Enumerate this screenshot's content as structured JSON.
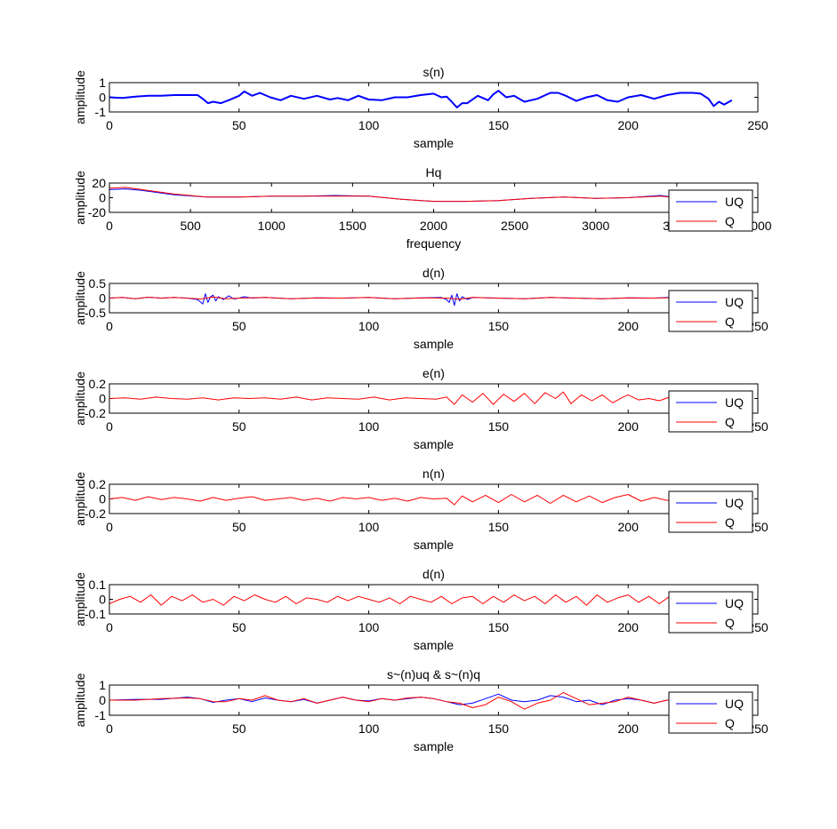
{
  "chart_data": [
    {
      "type": "line",
      "title": "s(n)",
      "xlabel": "sample",
      "ylabel": "amplitude",
      "xlim": [
        0,
        250
      ],
      "ylim": [
        -1,
        1
      ],
      "xticks": [
        "0",
        "50",
        "100",
        "150",
        "200",
        "250"
      ],
      "yticks": [
        "-1",
        "0",
        "1"
      ],
      "legend": null,
      "series": [
        {
          "color": "#0000ff",
          "x": [
            0,
            5,
            10,
            15,
            20,
            25,
            30,
            34,
            36,
            38,
            40,
            43,
            46,
            50,
            52,
            55,
            58,
            62,
            66,
            70,
            75,
            80,
            85,
            88,
            92,
            96,
            100,
            105,
            110,
            115,
            120,
            125,
            128,
            130,
            132,
            134,
            136,
            138,
            142,
            146,
            148,
            150,
            153,
            156,
            160,
            165,
            170,
            173,
            176,
            180,
            184,
            188,
            192,
            196,
            200,
            205,
            210,
            215,
            220,
            225,
            228,
            231,
            233,
            235,
            237,
            240
          ],
          "y": [
            0.0,
            -0.05,
            0.05,
            0.1,
            0.1,
            0.15,
            0.15,
            0.15,
            -0.1,
            -0.4,
            -0.3,
            -0.4,
            -0.2,
            0.1,
            0.4,
            0.1,
            0.3,
            0.0,
            -0.2,
            0.1,
            -0.1,
            0.1,
            -0.15,
            -0.05,
            -0.2,
            0.1,
            -0.15,
            -0.2,
            0.0,
            0.0,
            0.15,
            0.25,
            0.0,
            0.05,
            -0.3,
            -0.7,
            -0.4,
            -0.4,
            0.1,
            -0.2,
            0.2,
            0.45,
            0.0,
            0.1,
            -0.3,
            -0.1,
            0.3,
            0.3,
            0.1,
            -0.25,
            0.0,
            0.15,
            -0.2,
            -0.3,
            0.0,
            0.15,
            -0.1,
            0.15,
            0.3,
            0.3,
            0.25,
            -0.1,
            -0.6,
            -0.3,
            -0.5,
            -0.2
          ]
        }
      ]
    },
    {
      "type": "line",
      "title": "Hq",
      "xlabel": "frequency",
      "ylabel": "amplitude",
      "xlim": [
        0,
        4000
      ],
      "ylim": [
        -20,
        20
      ],
      "xticks": [
        "0",
        "500",
        "1000",
        "1500",
        "2000",
        "2500",
        "3000",
        "3500",
        "4000"
      ],
      "yticks": [
        "-20",
        "0",
        "20"
      ],
      "legend": [
        "UQ",
        "Q"
      ],
      "series": [
        {
          "name": "UQ",
          "color": "#0000ff",
          "x": [
            0,
            100,
            200,
            400,
            600,
            800,
            1000,
            1200,
            1400,
            1600,
            1800,
            2000,
            2200,
            2400,
            2600,
            2800,
            3000,
            3200,
            3400,
            3500
          ],
          "y": [
            11,
            12,
            10,
            4,
            1,
            1,
            2,
            2,
            3,
            2,
            -2,
            -5,
            -5,
            -4,
            -1,
            1,
            -1,
            0,
            3,
            0
          ]
        },
        {
          "name": "Q",
          "color": "#ff0000",
          "x": [
            0,
            100,
            200,
            400,
            600,
            800,
            1000,
            1200,
            1400,
            1600,
            1800,
            2000,
            2200,
            2400,
            2600,
            2800,
            3000,
            3200,
            3400,
            3500
          ],
          "y": [
            13,
            14,
            11,
            5,
            1,
            1,
            2,
            2,
            2,
            2,
            -2,
            -5,
            -5,
            -4,
            -1,
            1,
            -1,
            0,
            2,
            0
          ]
        }
      ]
    },
    {
      "type": "line",
      "title": "d(n)",
      "xlabel": "sample",
      "ylabel": "amplitude",
      "xlim": [
        0,
        250
      ],
      "ylim": [
        -0.5,
        0.5
      ],
      "xticks": [
        "0",
        "50",
        "100",
        "150",
        "200",
        "250"
      ],
      "yticks": [
        "-0.5",
        "0",
        "0.5"
      ],
      "legend": [
        "UQ",
        "Q"
      ],
      "series": [
        {
          "name": "UQ",
          "color": "#0000ff",
          "x": [
            0,
            5,
            10,
            15,
            20,
            25,
            30,
            34,
            36,
            37,
            38,
            39,
            40,
            41,
            42,
            44,
            46,
            48,
            50,
            52,
            55,
            60,
            70,
            80,
            90,
            100,
            110,
            120,
            128,
            130,
            131,
            132,
            133,
            134,
            135,
            136,
            138,
            140,
            150,
            160,
            170,
            180,
            190,
            200,
            210,
            215,
            220
          ],
          "y": [
            0.0,
            0.02,
            -0.02,
            0.03,
            0.0,
            0.02,
            0.0,
            -0.05,
            -0.2,
            0.15,
            -0.15,
            0.05,
            0.1,
            -0.1,
            0.05,
            -0.05,
            0.08,
            -0.03,
            0.0,
            0.05,
            0.0,
            0.02,
            -0.02,
            0.01,
            0.0,
            0.02,
            -0.02,
            0.01,
            0.02,
            -0.05,
            -0.15,
            0.1,
            -0.25,
            0.15,
            -0.1,
            0.05,
            -0.05,
            0.02,
            0.0,
            -0.02,
            0.02,
            0.0,
            -0.02,
            0.01,
            0.0,
            0.02,
            0.0
          ]
        },
        {
          "name": "Q",
          "color": "#ff0000",
          "x": [
            0,
            5,
            10,
            15,
            20,
            25,
            30,
            35,
            40,
            45,
            50,
            60,
            70,
            80,
            90,
            100,
            110,
            120,
            130,
            135,
            140,
            150,
            160,
            170,
            180,
            190,
            200,
            210,
            220
          ],
          "y": [
            0.0,
            0.02,
            -0.02,
            0.03,
            0.0,
            0.02,
            0.0,
            -0.03,
            0.04,
            -0.02,
            0.0,
            0.02,
            -0.02,
            0.01,
            0.0,
            0.02,
            -0.02,
            0.01,
            0.0,
            -0.04,
            0.02,
            0.0,
            -0.02,
            0.02,
            0.0,
            -0.02,
            0.01,
            0.0,
            0.02
          ]
        }
      ]
    },
    {
      "type": "line",
      "title": "e(n)",
      "xlabel": "sample",
      "ylabel": "amplitude",
      "xlim": [
        0,
        250
      ],
      "ylim": [
        -0.2,
        0.2
      ],
      "xticks": [
        "0",
        "50",
        "100",
        "150",
        "200",
        "250"
      ],
      "yticks": [
        "-0.2",
        "0",
        "0.2"
      ],
      "legend": [
        "UQ",
        "Q"
      ],
      "series": [
        {
          "name": "Q",
          "color": "#ff0000",
          "x": [
            0,
            6,
            12,
            18,
            24,
            30,
            36,
            42,
            48,
            54,
            60,
            66,
            72,
            78,
            84,
            90,
            96,
            102,
            108,
            114,
            120,
            126,
            130,
            133,
            136,
            140,
            144,
            148,
            152,
            156,
            160,
            164,
            168,
            172,
            175,
            178,
            182,
            186,
            190,
            194,
            198,
            200,
            204,
            208,
            212,
            216,
            220
          ],
          "y": [
            0.0,
            0.01,
            -0.01,
            0.02,
            0.0,
            -0.01,
            0.01,
            -0.02,
            0.01,
            0.0,
            0.01,
            -0.01,
            0.02,
            -0.02,
            0.01,
            0.0,
            -0.01,
            0.02,
            -0.02,
            0.01,
            0.0,
            -0.01,
            0.02,
            -0.08,
            0.05,
            -0.05,
            0.07,
            -0.08,
            0.06,
            -0.04,
            0.07,
            -0.07,
            0.08,
            0.0,
            0.09,
            -0.07,
            0.05,
            -0.03,
            0.05,
            -0.06,
            0.02,
            0.05,
            -0.02,
            0.0,
            -0.03,
            0.02,
            0.0
          ]
        }
      ]
    },
    {
      "type": "line",
      "title": "n(n)",
      "xlabel": "sample",
      "ylabel": "amplitude",
      "xlim": [
        0,
        250
      ],
      "ylim": [
        -0.2,
        0.2
      ],
      "xticks": [
        "0",
        "50",
        "100",
        "150",
        "200",
        "250"
      ],
      "yticks": [
        "-0.2",
        "0",
        "0.2"
      ],
      "legend": [
        "UQ",
        "Q"
      ],
      "series": [
        {
          "name": "Q",
          "color": "#ff0000",
          "x": [
            0,
            5,
            10,
            15,
            20,
            25,
            30,
            35,
            40,
            45,
            50,
            55,
            60,
            65,
            70,
            75,
            80,
            85,
            90,
            95,
            100,
            105,
            110,
            115,
            120,
            125,
            130,
            133,
            136,
            140,
            145,
            150,
            155,
            160,
            165,
            170,
            175,
            180,
            185,
            190,
            195,
            200,
            205,
            210,
            215,
            220
          ],
          "y": [
            0.0,
            0.02,
            -0.02,
            0.03,
            -0.01,
            0.02,
            0.0,
            -0.03,
            0.02,
            -0.02,
            0.01,
            0.03,
            -0.02,
            0.0,
            0.02,
            -0.02,
            0.01,
            -0.03,
            0.02,
            0.0,
            0.02,
            -0.02,
            0.01,
            -0.03,
            0.02,
            0.0,
            0.01,
            -0.08,
            0.04,
            -0.04,
            0.05,
            -0.05,
            0.06,
            -0.04,
            0.05,
            -0.06,
            0.05,
            -0.04,
            0.04,
            -0.05,
            0.02,
            0.06,
            -0.03,
            0.02,
            -0.02,
            0.0
          ]
        }
      ]
    },
    {
      "type": "line",
      "title": "d(n)",
      "xlabel": "sample",
      "ylabel": "amplitude",
      "xlim": [
        0,
        250
      ],
      "ylim": [
        -0.1,
        0.1
      ],
      "xticks": [
        "0",
        "50",
        "100",
        "150",
        "200",
        "250"
      ],
      "yticks": [
        "-0.1",
        "0",
        "0.1"
      ],
      "legend": [
        "UQ",
        "Q"
      ],
      "series": [
        {
          "name": "Q",
          "color": "#ff0000",
          "x": [
            0,
            4,
            8,
            12,
            16,
            20,
            24,
            28,
            32,
            36,
            40,
            44,
            48,
            52,
            56,
            60,
            64,
            68,
            72,
            76,
            80,
            84,
            88,
            92,
            96,
            100,
            104,
            108,
            112,
            116,
            120,
            124,
            128,
            132,
            136,
            140,
            144,
            148,
            152,
            156,
            160,
            164,
            168,
            172,
            176,
            180,
            184,
            188,
            192,
            196,
            200,
            204,
            208,
            212,
            216,
            220
          ],
          "y": [
            -0.03,
            0.0,
            0.02,
            -0.02,
            0.03,
            -0.04,
            0.02,
            -0.01,
            0.03,
            -0.02,
            0.0,
            -0.04,
            0.02,
            -0.01,
            0.03,
            0.0,
            -0.02,
            0.02,
            -0.03,
            0.01,
            0.0,
            -0.02,
            0.02,
            -0.01,
            0.02,
            0.0,
            -0.02,
            0.01,
            -0.03,
            0.02,
            0.0,
            -0.02,
            0.02,
            -0.03,
            0.01,
            0.02,
            -0.03,
            0.02,
            -0.02,
            0.03,
            -0.01,
            0.02,
            -0.03,
            0.03,
            -0.02,
            0.02,
            -0.04,
            0.03,
            -0.02,
            0.01,
            0.03,
            -0.02,
            0.02,
            -0.03,
            0.02,
            0.0
          ]
        }
      ]
    },
    {
      "type": "line",
      "title": "s~(n)uq & s~(n)q",
      "xlabel": "sample",
      "ylabel": "amplitude",
      "xlim": [
        0,
        250
      ],
      "ylim": [
        -1,
        1
      ],
      "xticks": [
        "0",
        "50",
        "100",
        "150",
        "200",
        "250"
      ],
      "yticks": [
        "-1",
        "0",
        "1"
      ],
      "legend": [
        "UQ",
        "Q"
      ],
      "series": [
        {
          "name": "UQ",
          "color": "#0000ff",
          "x": [
            0,
            10,
            20,
            30,
            35,
            40,
            45,
            50,
            55,
            60,
            65,
            70,
            75,
            80,
            85,
            90,
            95,
            100,
            105,
            110,
            115,
            120,
            125,
            130,
            135,
            140,
            145,
            150,
            155,
            160,
            165,
            170,
            175,
            180,
            185,
            190,
            195,
            200,
            205,
            210,
            215,
            220
          ],
          "y": [
            0.0,
            0.05,
            0.05,
            0.2,
            0.1,
            -0.15,
            0.0,
            0.1,
            -0.1,
            0.15,
            0.0,
            -0.1,
            0.05,
            -0.2,
            0.0,
            0.2,
            0.0,
            -0.05,
            0.1,
            0.0,
            0.1,
            0.2,
            0.1,
            -0.1,
            -0.3,
            -0.2,
            0.1,
            0.4,
            0.0,
            -0.1,
            0.0,
            0.3,
            0.2,
            -0.1,
            0.0,
            -0.3,
            0.0,
            0.1,
            0.0,
            -0.2,
            0.0,
            0.0
          ]
        },
        {
          "name": "Q",
          "color": "#ff0000",
          "x": [
            0,
            10,
            20,
            30,
            35,
            40,
            45,
            50,
            55,
            60,
            65,
            70,
            75,
            80,
            85,
            90,
            95,
            100,
            105,
            110,
            115,
            120,
            125,
            130,
            135,
            140,
            145,
            150,
            155,
            160,
            165,
            170,
            175,
            180,
            185,
            190,
            195,
            200,
            205,
            210,
            215,
            220
          ],
          "y": [
            0.0,
            0.0,
            0.1,
            0.15,
            0.1,
            -0.1,
            -0.1,
            0.1,
            0.0,
            0.3,
            0.0,
            -0.1,
            0.1,
            -0.2,
            0.0,
            0.2,
            0.0,
            -0.1,
            0.1,
            0.0,
            0.15,
            0.2,
            0.1,
            -0.1,
            -0.2,
            -0.5,
            -0.3,
            0.2,
            -0.1,
            -0.6,
            -0.2,
            0.0,
            0.5,
            0.1,
            -0.3,
            -0.2,
            -0.1,
            0.2,
            0.0,
            -0.2,
            0.0,
            0.0
          ]
        }
      ]
    }
  ]
}
